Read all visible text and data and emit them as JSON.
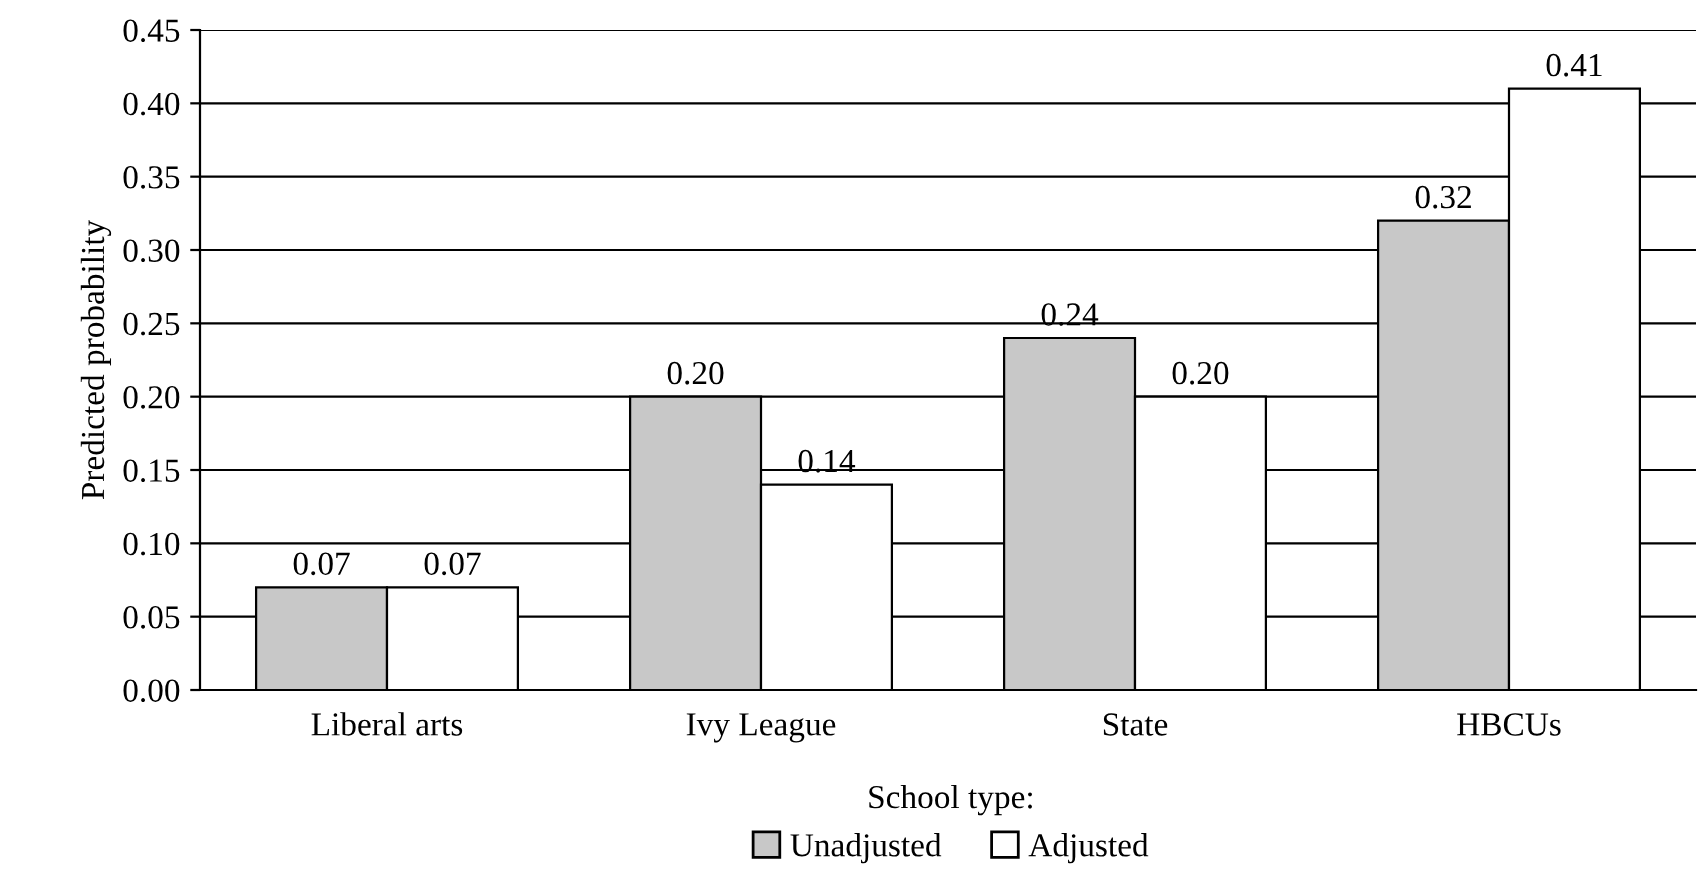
{
  "chart_data": {
    "type": "bar",
    "ylabel": "Predicted probability",
    "legend_title": "School type:",
    "categories": [
      "Liberal arts",
      "Ivy League",
      "State",
      "HBCUs"
    ],
    "series": [
      {
        "name": "Unadjusted",
        "color": "#c8c8c8",
        "values": [
          0.07,
          0.2,
          0.24,
          0.32
        ],
        "value_labels": [
          "0.07",
          "0.20",
          "0.24",
          "0.32"
        ]
      },
      {
        "name": "Adjusted",
        "color": "#ffffff",
        "values": [
          0.07,
          0.14,
          0.2,
          0.41
        ],
        "value_labels": [
          "0.07",
          "0.14",
          "0.20",
          "0.41"
        ]
      }
    ],
    "ylim": [
      0,
      0.45
    ],
    "yticks": [
      {
        "value": 0,
        "label": "0.00"
      },
      {
        "value": 0.05,
        "label": "0.05"
      },
      {
        "value": 0.1,
        "label": "0.10"
      },
      {
        "value": 0.15,
        "label": "0.15"
      },
      {
        "value": 0.2,
        "label": "0.20"
      },
      {
        "value": 0.25,
        "label": "0.25"
      },
      {
        "value": 0.3,
        "label": "0.30"
      },
      {
        "value": 0.35,
        "label": "0.35"
      },
      {
        "value": 0.4,
        "label": "0.40"
      },
      {
        "value": 0.45,
        "label": "0.45"
      }
    ],
    "grid": "y",
    "legend": "bottom"
  }
}
